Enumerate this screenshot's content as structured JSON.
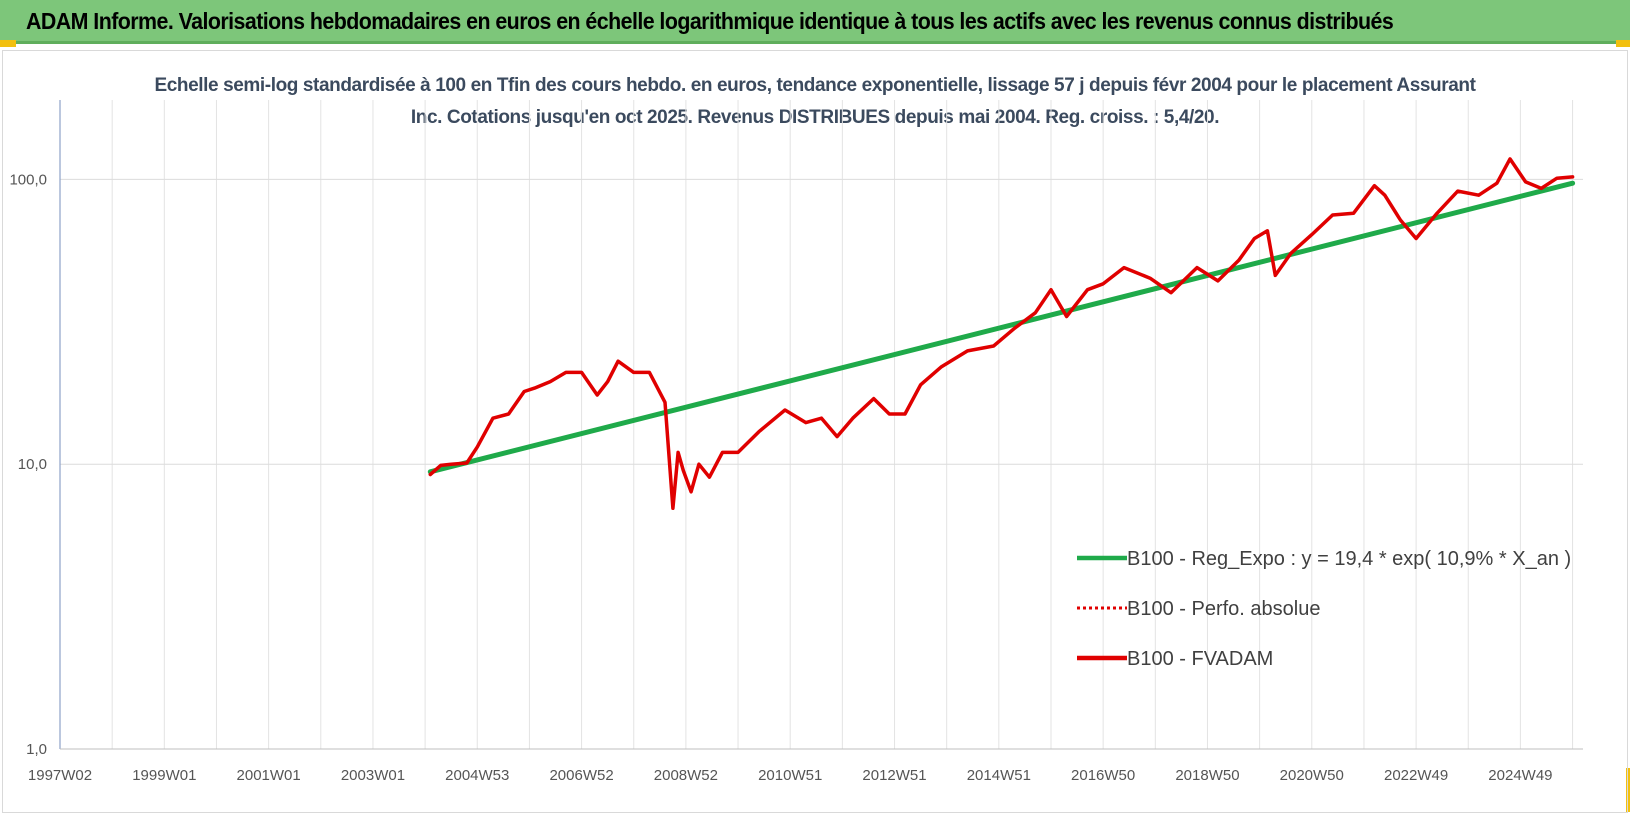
{
  "banner": {
    "title": "ADAM Informe. Valorisations hebdomadaires en euros en échelle logarithmique identique à tous les actifs avec les revenus connus distribués",
    "background": "#7dc67a"
  },
  "chart_data": {
    "type": "line",
    "title": "Echelle semi-log standardisée à 100 en Tfin des cours hebdo. en euros, tendance exponentielle, lissage 57 j depuis févr 2004 pour le placement Assurant Inc. Cotations jusqu'en oct 2025. Revenus DISTRIBUES depuis mai 2004. Reg. croiss. : 5,4/20.",
    "xlabel": "",
    "ylabel": "",
    "y_scale": "log",
    "ylim": [
      1,
      190
    ],
    "xlim": [
      1997.0,
      2026.2
    ],
    "y_ticks": [
      {
        "value": 1,
        "label": "1,0"
      },
      {
        "value": 10,
        "label": "10,0"
      },
      {
        "value": 100,
        "label": "100,0"
      }
    ],
    "x_ticks": [
      {
        "value": 1997.0,
        "label": "1997W02"
      },
      {
        "value": 1999.0,
        "label": "1999W01"
      },
      {
        "value": 2001.0,
        "label": "2001W01"
      },
      {
        "value": 2003.0,
        "label": "2003W01"
      },
      {
        "value": 2005.0,
        "label": "2004W53"
      },
      {
        "value": 2007.0,
        "label": "2006W52"
      },
      {
        "value": 2009.0,
        "label": "2008W52"
      },
      {
        "value": 2011.0,
        "label": "2010W51"
      },
      {
        "value": 2013.0,
        "label": "2012W51"
      },
      {
        "value": 2015.0,
        "label": "2014W51"
      },
      {
        "value": 2017.0,
        "label": "2016W50"
      },
      {
        "value": 2019.0,
        "label": "2018W50"
      },
      {
        "value": 2021.0,
        "label": "2020W50"
      },
      {
        "value": 2023.0,
        "label": "2022W49"
      },
      {
        "value": 2025.0,
        "label": "2024W49"
      }
    ],
    "grid": true,
    "legend_position": "bottom-right",
    "series": [
      {
        "name": "B100 - Reg_Expo : y = 19,4 * exp( 10,9% *  X_an )",
        "color": "#1faa4a",
        "style": "solid",
        "x": [
          2004.1,
          2026.0
        ],
        "y": [
          9.4,
          97.0
        ]
      },
      {
        "name": "B100 - Perfo. absolue",
        "color": "#e00000",
        "style": "dotted",
        "x": [],
        "y": []
      },
      {
        "name": "B100 - FVADAM",
        "color": "#e00000",
        "style": "solid",
        "x": [
          2004.1,
          2004.3,
          2004.5,
          2004.8,
          2005.0,
          2005.3,
          2005.6,
          2005.9,
          2006.1,
          2006.4,
          2006.7,
          2007.0,
          2007.3,
          2007.5,
          2007.7,
          2008.0,
          2008.3,
          2008.6,
          2008.75,
          2008.85,
          2008.95,
          2009.1,
          2009.25,
          2009.45,
          2009.7,
          2010.0,
          2010.4,
          2010.9,
          2011.3,
          2011.6,
          2011.9,
          2012.2,
          2012.6,
          2012.9,
          2013.2,
          2013.5,
          2013.9,
          2014.4,
          2014.9,
          2015.3,
          2015.7,
          2016.0,
          2016.3,
          2016.7,
          2017.0,
          2017.4,
          2017.9,
          2018.3,
          2018.8,
          2019.2,
          2019.6,
          2019.9,
          2020.15,
          2020.3,
          2020.6,
          2021.0,
          2021.4,
          2021.8,
          2022.2,
          2022.4,
          2022.7,
          2023.0,
          2023.4,
          2023.8,
          2024.2,
          2024.55,
          2024.8,
          2025.1,
          2025.4,
          2025.7,
          2026.0
        ],
        "y": [
          9.2,
          9.9,
          10.0,
          10.1,
          11.5,
          14.5,
          15.0,
          18.0,
          18.5,
          19.5,
          21.0,
          21.0,
          17.5,
          19.5,
          23.0,
          21.0,
          21.0,
          16.5,
          7.0,
          11.0,
          9.5,
          8.0,
          10.0,
          9.0,
          11.0,
          11.0,
          13.0,
          15.5,
          14.0,
          14.5,
          12.5,
          14.5,
          17.0,
          15.0,
          15.0,
          19.0,
          22.0,
          25.0,
          26.0,
          30.0,
          34.0,
          41.0,
          33.0,
          41.0,
          43.0,
          49.0,
          45.0,
          40.0,
          49.0,
          44.0,
          52.0,
          62.0,
          66.0,
          46.0,
          55.0,
          64.0,
          75.0,
          76.0,
          95.0,
          88.0,
          72.0,
          62.0,
          76.0,
          91.0,
          88.0,
          97.0,
          118.0,
          98.0,
          93.0,
          101.0,
          102.0
        ]
      }
    ]
  }
}
